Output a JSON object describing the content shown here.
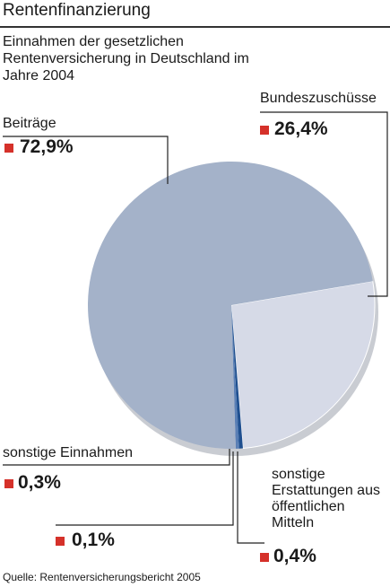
{
  "chart_data": {
    "type": "pie",
    "title": "Rentenfinanzierung",
    "subtitle": "Einnahmen der gesetzlichen Rentenversicherung in Deutschland im Jahre 2004",
    "source": "Quelle: Rentenversicherungsbericht 2005",
    "categories": [
      "Bundeszuschüsse",
      "sonstige Erstattungen aus öffentlichen Mitteln",
      null,
      "sonstige Einnahmen",
      "Beiträge"
    ],
    "values": [
      26.4,
      0.4,
      0.1,
      0.3,
      72.9
    ],
    "value_labels": [
      "26,4%",
      "0,4%",
      "0,1%",
      "0,3%",
      "72,9%"
    ],
    "colors": [
      "#d6dae7",
      "#1f4f8f",
      "#3f6fae",
      "#5a7fb5",
      "#a4b2c9"
    ]
  }
}
